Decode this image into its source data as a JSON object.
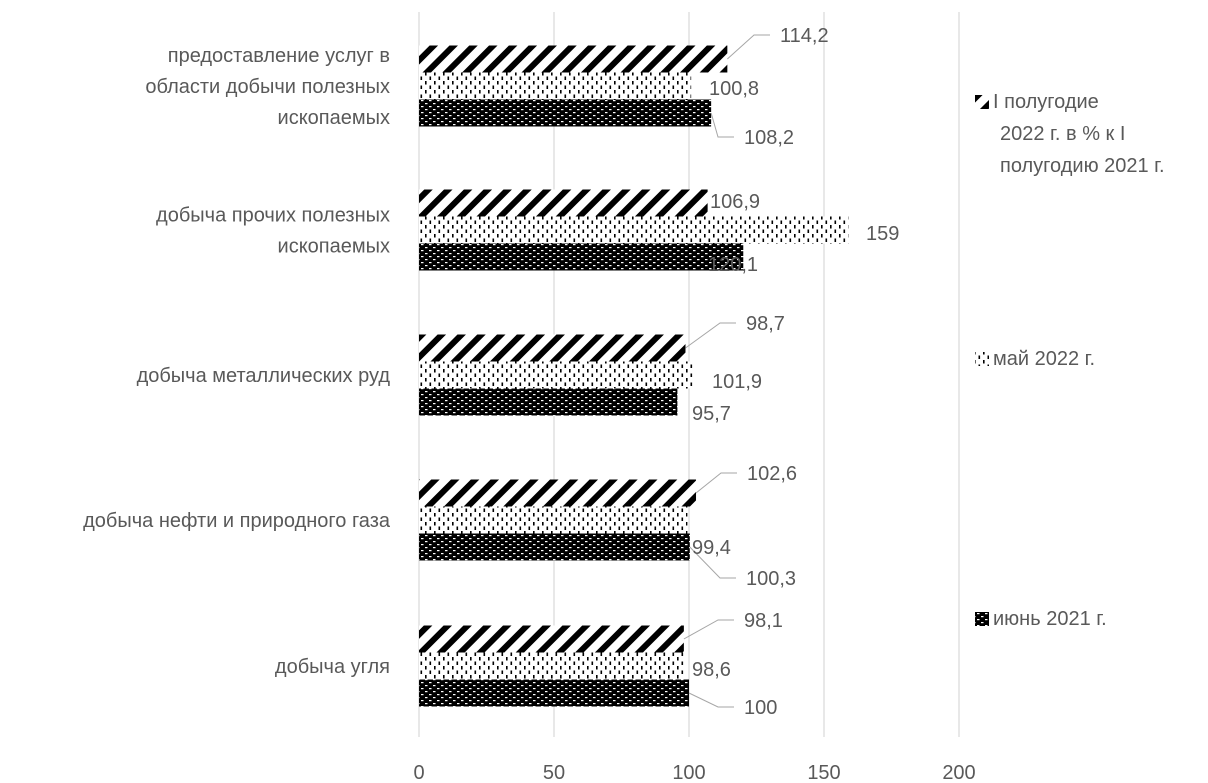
{
  "chart_data": {
    "type": "bar",
    "orientation": "horizontal",
    "categories": [
      [
        "предоставление услуг в",
        "области   добычи полезных",
        "ископаемых"
      ],
      [
        "добыча прочих полезных",
        "ископаемых"
      ],
      [
        "добыча металлических руд"
      ],
      [
        "добыча нефти и природного газа"
      ],
      [
        "добыча угля"
      ]
    ],
    "series": [
      {
        "name": [
          "I полугодие",
          "2022 г. в % к I",
          "полугодию 2021 г."
        ],
        "pattern": "diagonal-stripes",
        "values": [
          114.2,
          106.9,
          98.7,
          102.6,
          98.1
        ],
        "labels": [
          "114,2",
          "106,9",
          "98,7",
          "102,6",
          "98,1"
        ]
      },
      {
        "name": [
          "май 2022 г."
        ],
        "pattern": "dotted-vertical",
        "values": [
          100.8,
          159,
          101.9,
          99.4,
          98.6
        ],
        "labels": [
          "100,8",
          "159",
          "101,9",
          "99,4",
          "98,6"
        ]
      },
      {
        "name": [
          "июнь 2021 г."
        ],
        "pattern": "brick",
        "values": [
          108.2,
          120.1,
          95.7,
          100.3,
          100
        ],
        "labels": [
          "108,2",
          "120,1",
          "95,7",
          "100,3",
          "100"
        ]
      }
    ],
    "x_ticks": [
      0,
      50,
      100,
      150,
      200
    ],
    "xlim": [
      0,
      200
    ],
    "grid": true,
    "legend_position": "right",
    "colors": {
      "text": "#595959",
      "grid": "#d9d9d9",
      "bar": "#000000"
    }
  }
}
